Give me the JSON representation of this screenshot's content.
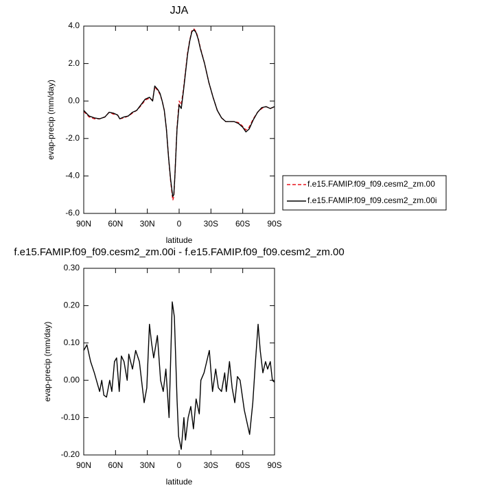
{
  "chart_data": [
    {
      "type": "line",
      "title": "JJA",
      "xlabel": "latitude",
      "ylabel": "evap-precip (mm/day)",
      "xlim": [
        90,
        -90
      ],
      "xticks": [
        {
          "value": 90,
          "label": "90N"
        },
        {
          "value": 60,
          "label": "60N"
        },
        {
          "value": 30,
          "label": "30N"
        },
        0,
        {
          "value": -30,
          "label": "30S"
        },
        {
          "value": -60,
          "label": "60S"
        },
        {
          "value": -90,
          "label": "90S"
        }
      ],
      "ylim": [
        -6,
        4
      ],
      "yticks": [
        {
          "value": -6,
          "label": "-6.0"
        },
        {
          "value": -4,
          "label": "-4.0"
        },
        {
          "value": -2,
          "label": "-2.0"
        },
        {
          "value": 0,
          "label": "0.0"
        },
        {
          "value": 2,
          "label": "2.0"
        },
        {
          "value": 4,
          "label": "4.0"
        }
      ],
      "legend": "right",
      "x": [
        90,
        85,
        80,
        75,
        70,
        66,
        62,
        58,
        56,
        52,
        48,
        44,
        40,
        36,
        32,
        28,
        25,
        23,
        20,
        18,
        16,
        14,
        12,
        10,
        8,
        6,
        5,
        4,
        2,
        0,
        -2,
        -4,
        -6,
        -8,
        -10,
        -12,
        -14,
        -16,
        -18,
        -20,
        -24,
        -28,
        -32,
        -36,
        -40,
        -44,
        -48,
        -52,
        -56,
        -60,
        -63,
        -66,
        -70,
        -74,
        -78,
        -82,
        -86,
        -90
      ],
      "series": [
        {
          "name": "f.e15.FAMIP.f09_f09.cesm2_zm.00",
          "color": "#e8141c",
          "dashed": true,
          "values": [
            -0.55,
            -0.85,
            -0.95,
            -0.95,
            -0.85,
            -0.6,
            -0.7,
            -0.75,
            -0.95,
            -0.9,
            -0.8,
            -0.65,
            -0.5,
            -0.25,
            0.05,
            0.15,
            0.05,
            0.75,
            0.55,
            0.35,
            0.0,
            -0.5,
            -1.5,
            -3.0,
            -4.3,
            -5.3,
            -5.1,
            -4.0,
            -1.4,
            0.0,
            -0.2,
            0.6,
            1.6,
            2.6,
            3.25,
            3.75,
            3.85,
            3.7,
            3.35,
            2.85,
            2.0,
            1.0,
            0.2,
            -0.5,
            -0.9,
            -1.1,
            -1.1,
            -1.1,
            -1.15,
            -1.35,
            -1.55,
            -1.4,
            -0.95,
            -0.6,
            -0.4,
            -0.3,
            -0.4,
            -0.3
          ]
        },
        {
          "name": "f.e15.FAMIP.f09_f09.cesm2_zm.00i",
          "color": "#000000",
          "dashed": false,
          "values": [
            -0.5,
            -0.8,
            -0.9,
            -0.95,
            -0.85,
            -0.6,
            -0.65,
            -0.75,
            -0.95,
            -0.85,
            -0.8,
            -0.6,
            -0.5,
            -0.2,
            0.1,
            0.2,
            0.0,
            0.8,
            0.6,
            0.4,
            0.0,
            -0.5,
            -1.5,
            -3.0,
            -4.2,
            -5.1,
            -5.0,
            -4.0,
            -1.5,
            -0.2,
            -0.4,
            0.5,
            1.5,
            2.5,
            3.2,
            3.7,
            3.8,
            3.65,
            3.3,
            2.8,
            2.0,
            1.0,
            0.2,
            -0.5,
            -0.9,
            -1.1,
            -1.1,
            -1.1,
            -1.2,
            -1.4,
            -1.65,
            -1.5,
            -1.0,
            -0.6,
            -0.35,
            -0.3,
            -0.4,
            -0.3
          ]
        }
      ]
    },
    {
      "type": "line",
      "title": "f.e15.FAMIP.f09_f09.cesm2_zm.00i - f.e15.FAMIP.f09_f09.cesm2_zm.00",
      "xlabel": "latitude",
      "ylabel": "evap-precip (mm/day)",
      "xlim": [
        90,
        -90
      ],
      "xticks": [
        {
          "value": 90,
          "label": "90N"
        },
        {
          "value": 60,
          "label": "60N"
        },
        {
          "value": 30,
          "label": "30N"
        },
        0,
        {
          "value": -30,
          "label": "30S"
        },
        {
          "value": -60,
          "label": "60S"
        },
        {
          "value": -90,
          "label": "90S"
        }
      ],
      "ylim": [
        -0.2,
        0.3
      ],
      "yticks": [
        {
          "value": -0.2,
          "label": "-0.20"
        },
        {
          "value": -0.1,
          "label": "-0.10"
        },
        {
          "value": 0,
          "label": "0.00"
        },
        {
          "value": 0.1,
          "label": "0.10"
        },
        {
          "value": 0.2,
          "label": "0.20"
        },
        {
          "value": 0.3,
          "label": "0.30"
        }
      ],
      "x": [
        90,
        87,
        83.5,
        80,
        77,
        75,
        73,
        71,
        68.5,
        65.5,
        63.5,
        61,
        59,
        56.5,
        54.5,
        52,
        49,
        47.5,
        44,
        41,
        37.5,
        33,
        30.5,
        28,
        26,
        24,
        20.5,
        17.5,
        15,
        12.5,
        9.5,
        6.5,
        4.5,
        2,
        0.5,
        -2,
        -4.5,
        -6,
        -8.5,
        -11,
        -13.5,
        -16,
        -19,
        -20.5,
        -23.5,
        -26,
        -28.5,
        -31.5,
        -34.5,
        -37,
        -40,
        -43,
        -44.5,
        -47.5,
        -50,
        -52.5,
        -55,
        -57.5,
        -61.5,
        -66.5,
        -69.5,
        -72,
        -74.5,
        -76.5,
        -79,
        -81.5,
        -83.5,
        -86,
        -88,
        -90
      ],
      "series": [
        {
          "color": "#000000",
          "dashed": false,
          "values": [
            0.08,
            0.095,
            0.05,
            0.02,
            -0.01,
            -0.03,
            0.0,
            -0.04,
            -0.045,
            0.0,
            -0.03,
            0.05,
            0.06,
            -0.03,
            0.065,
            0.05,
            0.0,
            0.07,
            0.03,
            0.08,
            0.05,
            -0.06,
            -0.02,
            0.15,
            0.1,
            0.06,
            0.12,
            0.0,
            -0.03,
            0.03,
            -0.1,
            0.21,
            0.17,
            -0.05,
            -0.15,
            -0.185,
            -0.1,
            -0.16,
            -0.1,
            -0.07,
            -0.13,
            -0.05,
            -0.09,
            0.0,
            0.02,
            0.05,
            0.08,
            -0.03,
            0.03,
            -0.02,
            -0.03,
            0.02,
            -0.03,
            0.05,
            -0.02,
            -0.06,
            0.01,
            0.0,
            -0.08,
            -0.145,
            -0.06,
            0.05,
            0.15,
            0.08,
            0.02,
            0.05,
            0.03,
            0.05,
            0.0,
            -0.005
          ]
        }
      ]
    }
  ]
}
